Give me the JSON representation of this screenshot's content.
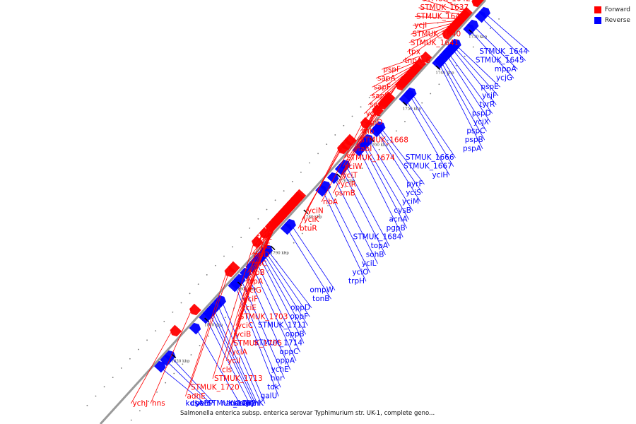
{
  "caption": "Salmonella enterica subsp. enterica serovar Typhimurium str. UK-1, complete geno...",
  "legend": {
    "forward": {
      "label": "Forward",
      "color": "#ff0000"
    },
    "reverse": {
      "label": "Reverse",
      "color": "#0000ff"
    }
  },
  "colors": {
    "forward": "#ff0000",
    "reverse": "#0000ff",
    "backbone": "#999999"
  },
  "ticks": [
    {
      "label": "1730 kbp",
      "pos": 0.06
    },
    {
      "label": "1740 kbp",
      "pos": 0.145
    },
    {
      "label": "1750 kbp",
      "pos": 0.23
    },
    {
      "label": "1760 kbp",
      "pos": 0.315
    },
    {
      "label": "1770 kbp",
      "pos": 0.4
    },
    {
      "label": "1780 kbp",
      "pos": 0.485
    },
    {
      "label": "1790 kbp",
      "pos": 0.57
    },
    {
      "label": "1800 kbp",
      "pos": 0.655
    },
    {
      "label": "1810 kbp",
      "pos": 0.74
    },
    {
      "label": "1820 kbp",
      "pos": 0.825
    }
  ],
  "reverse_genes": [
    {
      "name": "STMUK_1644",
      "pos": 0.02
    },
    {
      "name": "STMUK_1645",
      "pos": 0.03
    },
    {
      "name": "mppA",
      "pos": 0.05
    },
    {
      "name": "ycjG",
      "pos": 0.06
    },
    {
      "name": "pspE",
      "pos": 0.095
    },
    {
      "name": "ycjF",
      "pos": 0.1
    },
    {
      "name": "tyrR",
      "pos": 0.105
    },
    {
      "name": "pspD",
      "pos": 0.115
    },
    {
      "name": "ycjX",
      "pos": 0.12
    },
    {
      "name": "pspC",
      "pos": 0.13
    },
    {
      "name": "pspB",
      "pos": 0.135
    },
    {
      "name": "pspA",
      "pos": 0.14
    },
    {
      "name": "STMUK_1666",
      "pos": 0.21
    },
    {
      "name": "STMUK_1667",
      "pos": 0.215
    },
    {
      "name": "yciH",
      "pos": 0.225
    },
    {
      "name": "pyrF",
      "pos": 0.29
    },
    {
      "name": "yciS",
      "pos": 0.295
    },
    {
      "name": "yciM",
      "pos": 0.3
    },
    {
      "name": "cysB",
      "pos": 0.32
    },
    {
      "name": "acnA",
      "pos": 0.33
    },
    {
      "name": "pgpB",
      "pos": 0.335
    },
    {
      "name": "STMUK_1684",
      "pos": 0.345
    },
    {
      "name": "topA",
      "pos": 0.38
    },
    {
      "name": "sohB",
      "pos": 0.39
    },
    {
      "name": "yciL",
      "pos": 0.41
    },
    {
      "name": "yciO",
      "pos": 0.43
    },
    {
      "name": "trpH",
      "pos": 0.44
    },
    {
      "name": "ompW",
      "pos": 0.52
    },
    {
      "name": "tonB",
      "pos": 0.53
    },
    {
      "name": "oppD",
      "pos": 0.58
    },
    {
      "name": "oppF",
      "pos": 0.585
    },
    {
      "name": "STMUK_1711",
      "pos": 0.59
    },
    {
      "name": "oppB",
      "pos": 0.595
    },
    {
      "name": "STMUK_1714",
      "pos": 0.6
    },
    {
      "name": "oppC",
      "pos": 0.61
    },
    {
      "name": "oppA",
      "pos": 0.62
    },
    {
      "name": "ychE",
      "pos": 0.635
    },
    {
      "name": "hnr",
      "pos": 0.65
    },
    {
      "name": "tdk",
      "pos": 0.66
    },
    {
      "name": "galU",
      "pos": 0.665
    },
    {
      "name": "ychK",
      "pos": 0.7
    },
    {
      "name": "narI",
      "pos": 0.71
    },
    {
      "name": "STMUK_1732",
      "pos": 0.72
    },
    {
      "name": "narJ",
      "pos": 0.725
    },
    {
      "name": "narH",
      "pos": 0.73
    },
    {
      "name": "narG",
      "pos": 0.74
    },
    {
      "name": "narK",
      "pos": 0.765
    },
    {
      "name": "ychP",
      "pos": 0.83
    },
    {
      "name": "chaB",
      "pos": 0.84
    },
    {
      "name": "kdsA",
      "pos": 0.855
    }
  ],
  "forward_genes": [
    {
      "name": "STMUK_1638",
      "pos": 0.005
    },
    {
      "name": "ynaI",
      "pos": 0.01
    },
    {
      "name": "STMUK_1634",
      "pos": 0.012
    },
    {
      "name": "STMUK_1635",
      "pos": 0.014
    },
    {
      "name": "STMUK_1643",
      "pos": 0.04
    },
    {
      "name": "STMUK_1642",
      "pos": 0.045
    },
    {
      "name": "STMUK_1637",
      "pos": 0.05
    },
    {
      "name": "STMUK_1646",
      "pos": 0.06
    },
    {
      "name": "ycjI",
      "pos": 0.065
    },
    {
      "name": "STMUK_1640",
      "pos": 0.07
    },
    {
      "name": "STMUK_1641",
      "pos": 0.075
    },
    {
      "name": "tpx",
      "pos": 0.08
    },
    {
      "name": "tnpA_6",
      "pos": 0.09
    },
    {
      "name": "pspF",
      "pos": 0.145
    },
    {
      "name": "sapA",
      "pos": 0.16
    },
    {
      "name": "sapF",
      "pos": 0.17
    },
    {
      "name": "sapB",
      "pos": 0.175
    },
    {
      "name": "sapC",
      "pos": 0.18
    },
    {
      "name": "ycjE",
      "pos": 0.19
    },
    {
      "name": "sapD",
      "pos": 0.195
    },
    {
      "name": "rnb",
      "pos": 0.2
    },
    {
      "name": "STMUK_1668",
      "pos": 0.205
    },
    {
      "name": "fabI",
      "pos": 0.21
    },
    {
      "name": "STMUK_1674",
      "pos": 0.24
    },
    {
      "name": "yciW",
      "pos": 0.245
    },
    {
      "name": "yciT",
      "pos": 0.25
    },
    {
      "name": "yciR",
      "pos": 0.255
    },
    {
      "name": "osmB",
      "pos": 0.27
    },
    {
      "name": "ribA",
      "pos": 0.3
    },
    {
      "name": "yciN",
      "pos": 0.34
    },
    {
      "name": "yciK",
      "pos": 0.35
    },
    {
      "name": "btuR",
      "pos": 0.36
    },
    {
      "name": "trpL",
      "pos": 0.47
    },
    {
      "name": "trpE",
      "pos": 0.475
    },
    {
      "name": "trpD",
      "pos": 0.48
    },
    {
      "name": "trpC",
      "pos": 0.485
    },
    {
      "name": "trpB",
      "pos": 0.49
    },
    {
      "name": "trpA",
      "pos": 0.495
    },
    {
      "name": "yciG",
      "pos": 0.5
    },
    {
      "name": "yciF",
      "pos": 0.505
    },
    {
      "name": "yciE",
      "pos": 0.51
    },
    {
      "name": "STMUK_1703",
      "pos": 0.515
    },
    {
      "name": "yciC",
      "pos": 0.52
    },
    {
      "name": "yciB",
      "pos": 0.525
    },
    {
      "name": "STMUK_1705",
      "pos": 0.53
    },
    {
      "name": "yciA",
      "pos": 0.535
    },
    {
      "name": "yciI",
      "pos": 0.545
    },
    {
      "name": "cls",
      "pos": 0.56
    },
    {
      "name": "STMUK_1713",
      "pos": 0.58
    },
    {
      "name": "STMUK_1720",
      "pos": 0.64
    },
    {
      "name": "adhE",
      "pos": 0.65
    },
    {
      "name": "hns",
      "pos": 0.74
    },
    {
      "name": "ychJ",
      "pos": 0.79
    }
  ]
}
